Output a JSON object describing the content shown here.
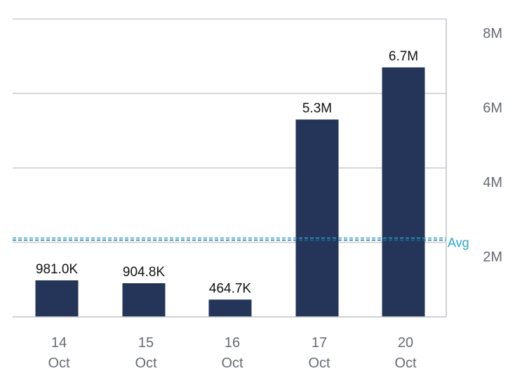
{
  "chart_data": {
    "type": "bar",
    "categories": [
      {
        "day": "14",
        "month": "Oct"
      },
      {
        "day": "15",
        "month": "Oct"
      },
      {
        "day": "16",
        "month": "Oct"
      },
      {
        "day": "17",
        "month": "Oct"
      },
      {
        "day": "20",
        "month": "Oct"
      }
    ],
    "values": [
      981000,
      904800,
      464700,
      5300000,
      6700000
    ],
    "value_labels": [
      "981.0K",
      "904.8K",
      "464.7K",
      "5.3M",
      "6.7M"
    ],
    "ylim": [
      0,
      8000000
    ],
    "yticks": [
      {
        "value": 2000000,
        "label": "2M"
      },
      {
        "value": 4000000,
        "label": "4M"
      },
      {
        "value": 6000000,
        "label": "6M"
      },
      {
        "value": 8000000,
        "label": "8M"
      }
    ],
    "y_axis_side": "right",
    "grid": true,
    "average": {
      "value": 2100000,
      "label": "Avg"
    },
    "colors": {
      "bar": "#243559",
      "grid": "#c9ccd1",
      "axis": "#bfc3c9",
      "avg": "#2aa3d1",
      "avg_dark": "#1d6e9e"
    }
  }
}
